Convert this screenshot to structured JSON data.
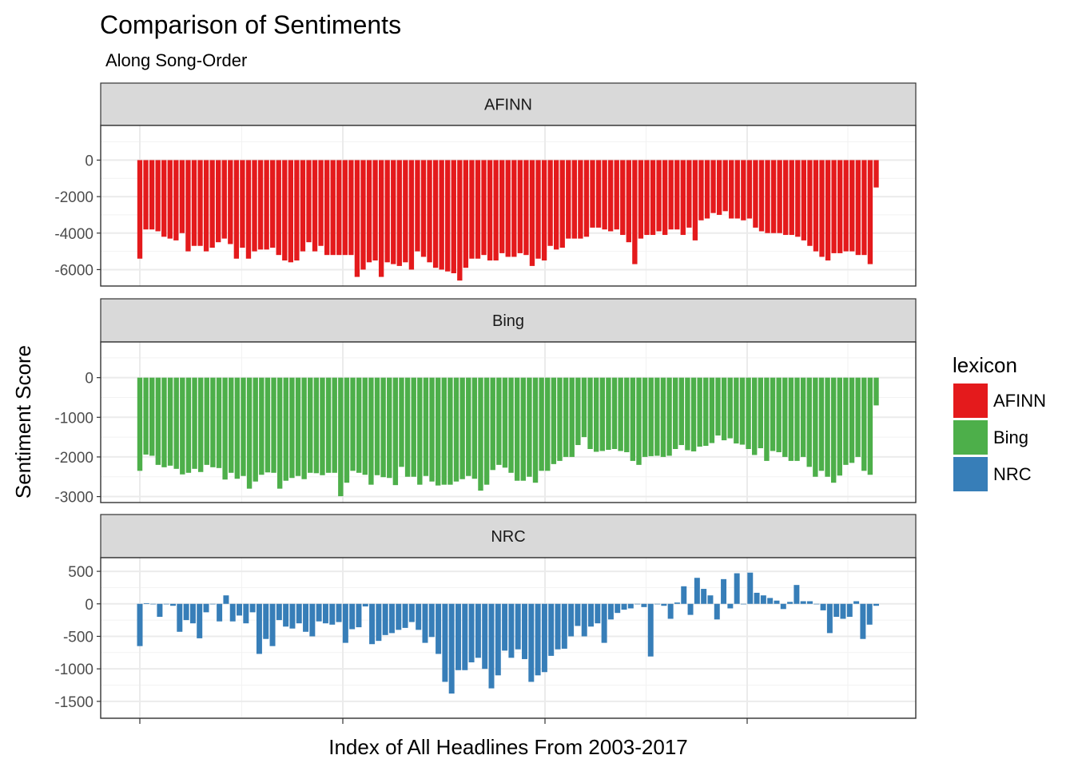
{
  "chart_data": {
    "type": "bar",
    "title": "Comparison of Sentiments",
    "subtitle": "Along Song-Order",
    "xlabel": "Index of All Headlines From 2003-2017",
    "ylabel": "Sentiment Score",
    "grid": true,
    "legend": {
      "title": "lexicon",
      "position": "right",
      "entries": [
        "AFINN",
        "Bing",
        "NRC"
      ]
    },
    "panels": [
      {
        "name": "AFINN",
        "color": "#E41A1C",
        "ylim": [
          -6900,
          1900
        ],
        "yticks": [
          0,
          -2000,
          -4000,
          -6000
        ],
        "ytick_labels": [
          "0",
          "-2000",
          "-4000",
          "-6000"
        ],
        "values": [
          -5400,
          -3800,
          -3800,
          -3900,
          -4200,
          -4300,
          -4400,
          -4000,
          -5000,
          -4700,
          -4700,
          -5000,
          -4800,
          -4500,
          -4300,
          -4600,
          -5400,
          -4800,
          -5400,
          -5000,
          -4900,
          -4900,
          -4800,
          -5200,
          -5500,
          -5600,
          -5500,
          -5000,
          -4500,
          -5000,
          -4700,
          -5200,
          -5200,
          -5200,
          -5200,
          -5200,
          -6400,
          -6000,
          -5600,
          -5500,
          -6400,
          -5600,
          -5700,
          -5800,
          -5600,
          -6000,
          -5000,
          -5300,
          -5600,
          -5900,
          -6000,
          -6100,
          -6200,
          -6600,
          -5900,
          -5400,
          -5400,
          -5200,
          -5500,
          -5500,
          -5100,
          -5300,
          -5300,
          -5100,
          -5200,
          -5800,
          -5400,
          -5500,
          -4700,
          -4900,
          -4800,
          -4300,
          -4300,
          -4300,
          -4200,
          -3700,
          -3700,
          -3800,
          -3900,
          -3800,
          -4100,
          -4500,
          -5700,
          -4300,
          -4100,
          -4100,
          -3900,
          -4100,
          -3800,
          -3800,
          -4100,
          -3700,
          -4400,
          -3300,
          -3200,
          -2900,
          -3000,
          -2800,
          -3200,
          -3200,
          -3300,
          -3200,
          -3700,
          -3900,
          -4000,
          -4000,
          -4000,
          -4100,
          -4100,
          -4200,
          -4400,
          -4700,
          -5000,
          -5300,
          -5500,
          -5100,
          -5100,
          -5000,
          -5000,
          -5200,
          -5200,
          -5700,
          -1500
        ]
      },
      {
        "name": "Bing",
        "color": "#4DAF4A",
        "ylim": [
          -3150,
          900
        ],
        "yticks": [
          0,
          -1000,
          -2000,
          -3000
        ],
        "ytick_labels": [
          "0",
          "-1000",
          "-2000",
          "-3000"
        ],
        "values": [
          -2350,
          -1940,
          -1970,
          -2200,
          -2260,
          -2220,
          -2300,
          -2440,
          -2400,
          -2300,
          -2380,
          -2200,
          -2260,
          -2280,
          -2570,
          -2400,
          -2550,
          -2480,
          -2800,
          -2620,
          -2450,
          -2390,
          -2400,
          -2800,
          -2600,
          -2530,
          -2480,
          -2560,
          -2400,
          -2410,
          -2460,
          -2400,
          -2400,
          -2990,
          -2650,
          -2350,
          -2400,
          -2450,
          -2700,
          -2460,
          -2510,
          -2530,
          -2710,
          -2250,
          -2500,
          -2500,
          -2700,
          -2480,
          -2620,
          -2720,
          -2700,
          -2700,
          -2620,
          -2560,
          -2480,
          -2550,
          -2850,
          -2700,
          -2330,
          -2200,
          -2270,
          -2400,
          -2600,
          -2600,
          -2500,
          -2650,
          -2350,
          -2350,
          -2180,
          -2100,
          -2000,
          -2000,
          -1700,
          -1500,
          -1800,
          -1870,
          -1850,
          -1820,
          -1800,
          -1850,
          -1880,
          -2100,
          -2200,
          -2000,
          -1980,
          -1970,
          -2000,
          -1970,
          -1800,
          -1700,
          -1830,
          -1860,
          -1740,
          -1720,
          -1650,
          -1460,
          -1580,
          -1530,
          -1660,
          -1690,
          -1800,
          -1950,
          -1780,
          -2100,
          -1850,
          -1880,
          -2000,
          -2100,
          -2100,
          -2000,
          -2250,
          -2500,
          -2350,
          -2500,
          -2650,
          -2470,
          -2200,
          -2150,
          -2000,
          -2350,
          -2450,
          -700
        ]
      },
      {
        "name": "NRC",
        "color": "#377EB8",
        "ylim": [
          -1760,
          710
        ],
        "yticks": [
          500,
          0,
          -500,
          -1000,
          -1500
        ],
        "ytick_labels": [
          "500",
          "0",
          "-500",
          "-1000",
          "-1500"
        ],
        "values": [
          -650,
          10,
          0,
          -200,
          0,
          -30,
          -430,
          -250,
          -300,
          -530,
          -130,
          0,
          -270,
          130,
          -270,
          -180,
          -300,
          -130,
          -770,
          -540,
          -650,
          -250,
          -350,
          -380,
          -300,
          -430,
          -500,
          -270,
          -300,
          -320,
          -280,
          -600,
          -390,
          -360,
          -40,
          -620,
          -570,
          -480,
          -450,
          -400,
          -370,
          -280,
          -400,
          -600,
          -510,
          -770,
          -1200,
          -1380,
          -1020,
          -1020,
          -900,
          -830,
          -1000,
          -1300,
          -1100,
          -720,
          -830,
          -700,
          -850,
          -1200,
          -1100,
          -1050,
          -800,
          -700,
          -690,
          -500,
          -340,
          -500,
          -350,
          -300,
          -600,
          -240,
          -140,
          -90,
          -70,
          0,
          -50,
          -810,
          0,
          -30,
          -230,
          20,
          270,
          -170,
          400,
          230,
          130,
          -240,
          380,
          -70,
          470,
          0,
          480,
          170,
          130,
          90,
          50,
          -80,
          30,
          290,
          40,
          40,
          0,
          -100,
          -450,
          -200,
          -230,
          -200,
          40,
          -540,
          -320,
          -30
        ]
      }
    ]
  }
}
